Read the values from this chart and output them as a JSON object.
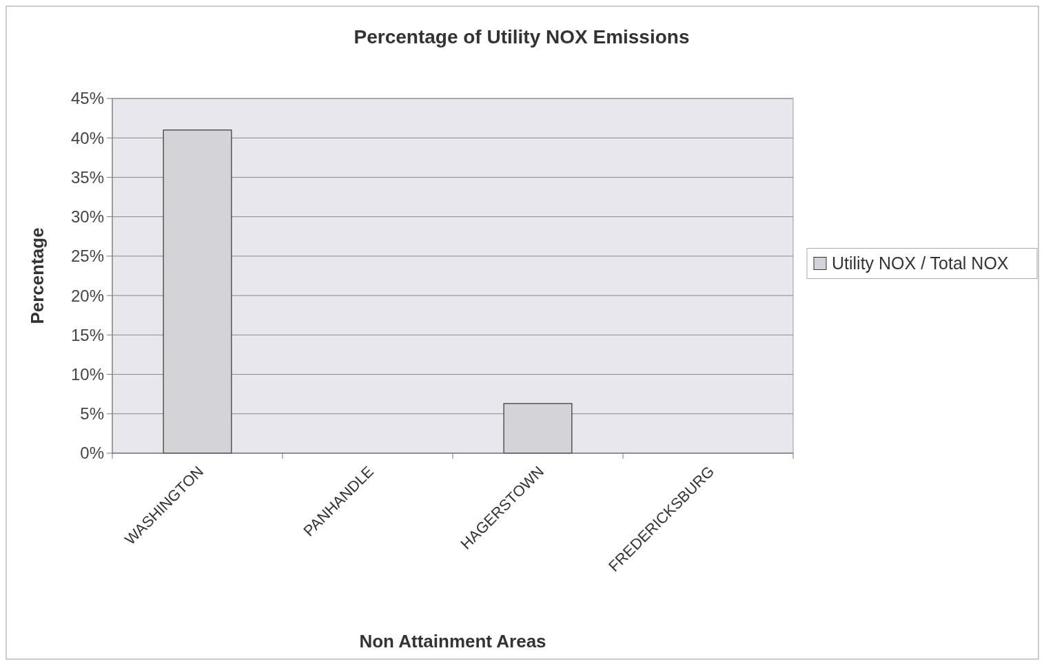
{
  "chart_data": {
    "type": "bar",
    "title": "Percentage of Utility NOX Emissions",
    "xlabel": "Non Attainment Areas",
    "ylabel": "Percentage",
    "categories": [
      "WASHINGTON",
      "PANHANDLE",
      "HAGERSTOWN",
      "FREDERICKSBURG"
    ],
    "series": [
      {
        "name": "Utility NOX / Total NOX",
        "color": "#d4d3d8",
        "values": [
          41,
          0,
          6.3,
          0
        ]
      }
    ],
    "ylim": [
      0,
      45
    ],
    "yticks": [
      {
        "value": 0,
        "label": "0%"
      },
      {
        "value": 5,
        "label": "5%"
      },
      {
        "value": 10,
        "label": "10%"
      },
      {
        "value": 15,
        "label": "15%"
      },
      {
        "value": 20,
        "label": "20%"
      },
      {
        "value": 25,
        "label": "25%"
      },
      {
        "value": 30,
        "label": "30%"
      },
      {
        "value": 35,
        "label": "35%"
      },
      {
        "value": 40,
        "label": "40%"
      },
      {
        "value": 45,
        "label": "45%"
      }
    ],
    "grid": "y",
    "legend": "right"
  }
}
